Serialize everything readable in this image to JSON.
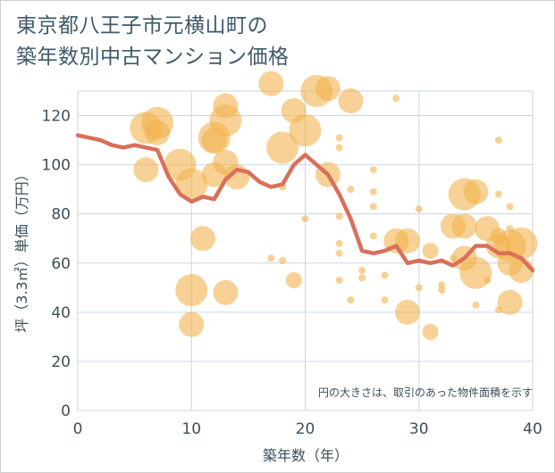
{
  "title_line1": "東京都八王子市元横山町の",
  "title_line2": "築年数別中古マンション価格",
  "colors": {
    "bubble": "#f2b24e",
    "line": "#d9705a",
    "grid": "#c9d6e6",
    "text": "#3d4f5a"
  },
  "chart_data": {
    "type": "scatter",
    "xlabel": "築年数（年）",
    "ylabel": "坪（3.3㎡）単価（万円）",
    "xlim": [
      0,
      40
    ],
    "ylim": [
      0,
      130
    ],
    "x_ticks": [
      "0",
      "10",
      "20",
      "30",
      "40"
    ],
    "y_ticks": [
      "0",
      "20",
      "40",
      "60",
      "80",
      "100",
      "120"
    ],
    "annotation": "円の大きさは、取引のあった物件面積を示す",
    "bubbles": [
      {
        "x": 6,
        "y": 115,
        "s": 3
      },
      {
        "x": 7,
        "y": 117,
        "s": 3
      },
      {
        "x": 7,
        "y": 113,
        "s": 2
      },
      {
        "x": 6,
        "y": 98,
        "s": 2
      },
      {
        "x": 9,
        "y": 100,
        "s": 3
      },
      {
        "x": 10,
        "y": 92,
        "s": 3
      },
      {
        "x": 10,
        "y": 49,
        "s": 3
      },
      {
        "x": 10,
        "y": 35,
        "s": 2
      },
      {
        "x": 11,
        "y": 70,
        "s": 2
      },
      {
        "x": 12,
        "y": 111,
        "s": 3
      },
      {
        "x": 12,
        "y": 110,
        "s": 2
      },
      {
        "x": 12,
        "y": 96,
        "s": 2
      },
      {
        "x": 13,
        "y": 124,
        "s": 2
      },
      {
        "x": 13,
        "y": 118,
        "s": 3
      },
      {
        "x": 13,
        "y": 101,
        "s": 2
      },
      {
        "x": 13,
        "y": 48,
        "s": 2
      },
      {
        "x": 14,
        "y": 95,
        "s": 2
      },
      {
        "x": 17,
        "y": 133,
        "s": 2
      },
      {
        "x": 17,
        "y": 62,
        "s": 0
      },
      {
        "x": 18,
        "y": 107,
        "s": 3
      },
      {
        "x": 18,
        "y": 61,
        "s": 0
      },
      {
        "x": 18,
        "y": 91,
        "s": 0
      },
      {
        "x": 19,
        "y": 122,
        "s": 2
      },
      {
        "x": 19,
        "y": 53,
        "s": 1
      },
      {
        "x": 20,
        "y": 114,
        "s": 3
      },
      {
        "x": 20,
        "y": 78,
        "s": 0
      },
      {
        "x": 21,
        "y": 130,
        "s": 3
      },
      {
        "x": 22,
        "y": 131,
        "s": 2
      },
      {
        "x": 22,
        "y": 96,
        "s": 2
      },
      {
        "x": 23,
        "y": 111,
        "s": 0
      },
      {
        "x": 23,
        "y": 107,
        "s": 0
      },
      {
        "x": 23,
        "y": 79,
        "s": 0
      },
      {
        "x": 23,
        "y": 68,
        "s": 0
      },
      {
        "x": 23,
        "y": 64,
        "s": 0
      },
      {
        "x": 23,
        "y": 53,
        "s": 0
      },
      {
        "x": 24,
        "y": 126,
        "s": 2
      },
      {
        "x": 24,
        "y": 90,
        "s": 0
      },
      {
        "x": 24,
        "y": 45,
        "s": 0
      },
      {
        "x": 25,
        "y": 57,
        "s": 0
      },
      {
        "x": 25,
        "y": 54,
        "s": 0
      },
      {
        "x": 26,
        "y": 98,
        "s": 0
      },
      {
        "x": 26,
        "y": 89,
        "s": 0
      },
      {
        "x": 26,
        "y": 83,
        "s": 0
      },
      {
        "x": 26,
        "y": 71,
        "s": 0
      },
      {
        "x": 27,
        "y": 55,
        "s": 0
      },
      {
        "x": 27,
        "y": 45,
        "s": 0
      },
      {
        "x": 28,
        "y": 127,
        "s": 0
      },
      {
        "x": 28,
        "y": 69,
        "s": 2
      },
      {
        "x": 29,
        "y": 69,
        "s": 2
      },
      {
        "x": 29,
        "y": 40,
        "s": 2
      },
      {
        "x": 30,
        "y": 82,
        "s": 0
      },
      {
        "x": 30,
        "y": 50,
        "s": 0
      },
      {
        "x": 31,
        "y": 65,
        "s": 1
      },
      {
        "x": 31,
        "y": 32,
        "s": 1
      },
      {
        "x": 32,
        "y": 51,
        "s": 0
      },
      {
        "x": 32,
        "y": 49,
        "s": 0
      },
      {
        "x": 33,
        "y": 75,
        "s": 2
      },
      {
        "x": 33,
        "y": 62,
        "s": 0
      },
      {
        "x": 34,
        "y": 88,
        "s": 3
      },
      {
        "x": 34,
        "y": 75,
        "s": 2
      },
      {
        "x": 34,
        "y": 62,
        "s": 2
      },
      {
        "x": 35,
        "y": 89,
        "s": 2
      },
      {
        "x": 35,
        "y": 56,
        "s": 3
      },
      {
        "x": 35,
        "y": 43,
        "s": 0
      },
      {
        "x": 36,
        "y": 74,
        "s": 2
      },
      {
        "x": 36,
        "y": 53,
        "s": 0
      },
      {
        "x": 37,
        "y": 110,
        "s": 0
      },
      {
        "x": 37,
        "y": 88,
        "s": 0
      },
      {
        "x": 37,
        "y": 71,
        "s": 1
      },
      {
        "x": 37,
        "y": 67,
        "s": 2
      },
      {
        "x": 37,
        "y": 41,
        "s": 0
      },
      {
        "x": 38,
        "y": 83,
        "s": 0
      },
      {
        "x": 38,
        "y": 74,
        "s": 0
      },
      {
        "x": 38,
        "y": 67,
        "s": 3
      },
      {
        "x": 38,
        "y": 60,
        "s": 2
      },
      {
        "x": 38,
        "y": 44,
        "s": 2
      },
      {
        "x": 39,
        "y": 68,
        "s": 3
      },
      {
        "x": 39,
        "y": 57,
        "s": 2
      }
    ],
    "trend": {
      "x": [
        0,
        1,
        2,
        3,
        4,
        5,
        6,
        7,
        8,
        9,
        10,
        11,
        12,
        13,
        14,
        15,
        16,
        17,
        18,
        19,
        20,
        21,
        22,
        23,
        24,
        25,
        26,
        27,
        28,
        29,
        30,
        31,
        32,
        33,
        34,
        35,
        36,
        37,
        38,
        39,
        40
      ],
      "y": [
        112,
        111,
        110,
        108,
        107,
        108,
        107,
        106,
        95,
        88,
        85,
        87,
        86,
        94,
        98,
        97,
        93,
        91,
        92,
        100,
        104,
        100,
        96,
        88,
        78,
        65,
        64,
        65,
        67,
        60,
        61,
        60,
        61,
        59,
        62,
        67,
        67,
        64,
        64,
        62,
        57
      ]
    }
  }
}
